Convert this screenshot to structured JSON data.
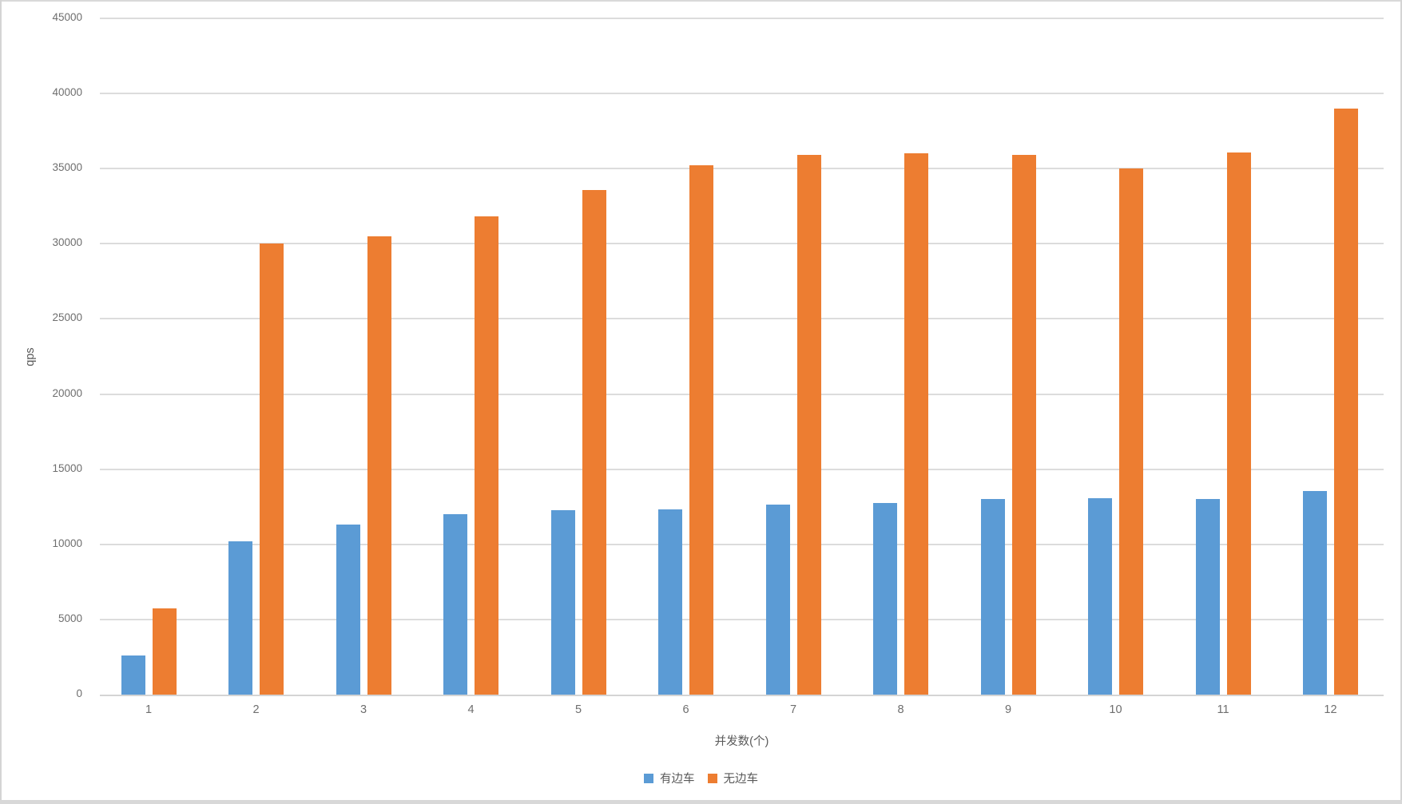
{
  "chart_data": {
    "type": "bar",
    "title": "",
    "xlabel": "并发数(个)",
    "ylabel": "qps",
    "categories": [
      "1",
      "2",
      "3",
      "4",
      "5",
      "6",
      "7",
      "8",
      "9",
      "10",
      "11",
      "12"
    ],
    "series": [
      {
        "name": "有边车",
        "color": "#5B9BD5",
        "values": [
          2600,
          10200,
          11300,
          12000,
          12250,
          12350,
          12650,
          12750,
          13000,
          13050,
          13000,
          13550
        ]
      },
      {
        "name": "无边车",
        "color": "#ED7D31",
        "values": [
          5750,
          30000,
          30500,
          31800,
          33600,
          35200,
          35900,
          36000,
          35900,
          35000,
          36100,
          39000
        ]
      }
    ],
    "ylim": [
      0,
      45000
    ],
    "yticks": [
      0,
      5000,
      10000,
      15000,
      20000,
      25000,
      30000,
      35000,
      40000,
      45000
    ],
    "grid": "horizontal",
    "legend_position": "bottom",
    "grid_color": "#dcdcdc",
    "tick_color": "#6e6e6e"
  }
}
